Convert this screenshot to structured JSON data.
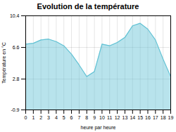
{
  "chart_data": {
    "type": "area",
    "title": "Evolution de la température",
    "xlabel": "heure par heure",
    "ylabel": "Température en °C",
    "x": [
      0,
      1,
      2,
      3,
      4,
      5,
      6,
      7,
      8,
      9,
      10,
      11,
      12,
      13,
      14,
      15,
      16,
      17,
      18,
      19
    ],
    "values": [
      7.0,
      7.1,
      7.5,
      7.6,
      7.3,
      6.8,
      5.8,
      4.5,
      3.1,
      3.7,
      7.0,
      6.8,
      7.2,
      7.8,
      9.2,
      9.5,
      8.8,
      7.5,
      5.2,
      3.1
    ],
    "color": "#62c2d4",
    "xlim": [
      0,
      19
    ],
    "ylim": [
      -0.9,
      10.4
    ],
    "xticks": [
      0,
      1,
      2,
      3,
      4,
      5,
      6,
      7,
      8,
      9,
      10,
      11,
      12,
      13,
      14,
      15,
      16,
      17,
      18,
      19
    ],
    "yticks": [
      -0.9,
      2.8,
      6.6,
      10.4
    ],
    "grid": true
  }
}
